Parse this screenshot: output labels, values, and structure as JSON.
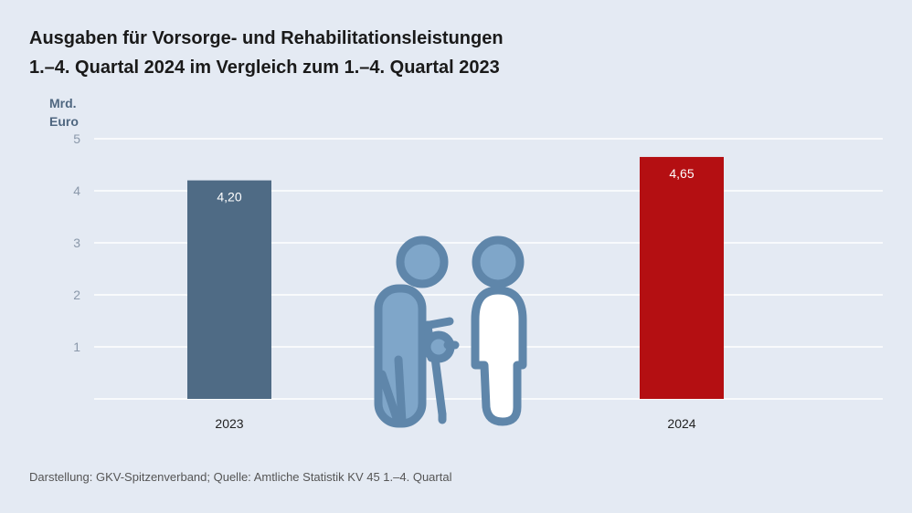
{
  "title": {
    "line1": "Ausgaben für Vorsorge- und Rehabilitationsleistungen",
    "line2": "1.–4. Quartal 2024 im Vergleich zum 1.–4. Quartal 2023"
  },
  "unit": {
    "line1": "Mrd.",
    "line2": "Euro"
  },
  "source": "Darstellung: GKV-Spitzenverband; Quelle: Amtliche Statistik KV 45 1.–4. Quartal",
  "chart_data": {
    "type": "bar",
    "title": "Ausgaben für Vorsorge- und Rehabilitationsleistungen 1.–4. Quartal 2024 im Vergleich zum 1.–4. Quartal 2023",
    "ylabel": "Mrd. Euro",
    "xlabel": "",
    "categories": [
      "2023",
      "2024"
    ],
    "values": [
      4.2,
      4.65
    ],
    "value_labels": [
      "4,20",
      "4,65"
    ],
    "ylim": [
      0,
      5
    ],
    "yticks": [
      1,
      2,
      3,
      4,
      5
    ],
    "grid": true,
    "colors": [
      "#4f6b85",
      "#b40f12"
    ]
  },
  "illustration": {
    "icon": "rehabilitation-people-icon"
  },
  "colors": {
    "background": "#e4eaf3",
    "icon_stroke": "#5f86aa",
    "icon_fill": "#7fa6c9"
  }
}
